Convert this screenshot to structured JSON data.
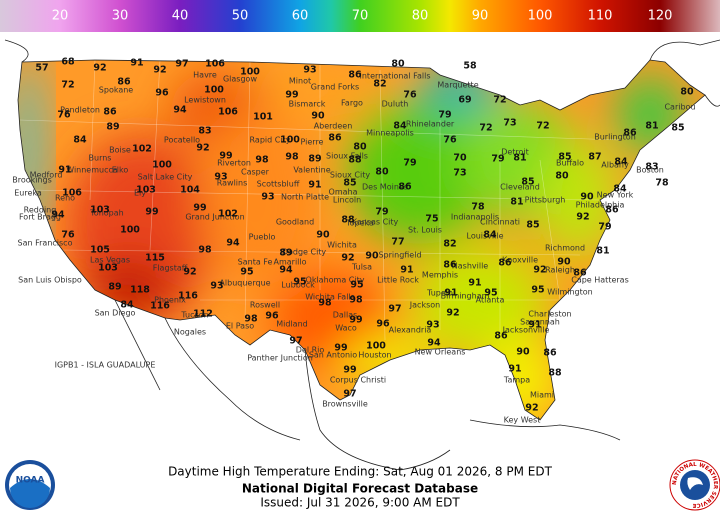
{
  "legend": {
    "ticks": [
      20,
      30,
      40,
      50,
      60,
      70,
      80,
      90,
      100,
      110,
      120
    ]
  },
  "map": {
    "temperatures": [
      92,
      91,
      92,
      97,
      106,
      100,
      93,
      86,
      80,
      58,
      68,
      57,
      72,
      86,
      96,
      100,
      99,
      82,
      76,
      69,
      72,
      80,
      76,
      86,
      94,
      106,
      101,
      90,
      84,
      79,
      72,
      73,
      72,
      86,
      81,
      85,
      84,
      89,
      83,
      100,
      86,
      88,
      80,
      79,
      76,
      70,
      79,
      81,
      85,
      87,
      84,
      83,
      91,
      102,
      100,
      92,
      99,
      98,
      98,
      89,
      80,
      73,
      80,
      106,
      103,
      104,
      93,
      91,
      85,
      86,
      78,
      85,
      84,
      78,
      94,
      103,
      99,
      99,
      102,
      93,
      88,
      79,
      75,
      81,
      90,
      92,
      86,
      76,
      100,
      94,
      90,
      77,
      82,
      84,
      85,
      79,
      105,
      115,
      98,
      89,
      92,
      90,
      86,
      86,
      90,
      81,
      103,
      92,
      95,
      94,
      95,
      91,
      91,
      92,
      86,
      89,
      118,
      116,
      93,
      95,
      91,
      95,
      95,
      84,
      116,
      112,
      96,
      98,
      98,
      97,
      92,
      91,
      98,
      97,
      99,
      96,
      93,
      94,
      86,
      90,
      86,
      99,
      100,
      91,
      88,
      99,
      92,
      97
    ],
    "cities": [
      "Spokane",
      "Havre",
      "Glasgow",
      "Minot",
      "Grand Forks",
      "International Falls",
      "Marquette",
      "Lewistown",
      "Bismarck",
      "Fargo",
      "Duluth",
      "Pendleton",
      "Aberdeen",
      "Minneapolis",
      "Rhinelander",
      "Pierre",
      "Rapid City",
      "Sioux Falls",
      "Boise",
      "Burns",
      "Pocatello",
      "Riverton",
      "Casper",
      "Rawlins",
      "Scottsbluff",
      "North Platte",
      "Valentine",
      "Sioux City",
      "Des Moines",
      "Omaha",
      "Lincoln",
      "Detroit",
      "Buffalo",
      "Burlington",
      "Caribou",
      "Albany",
      "Boston",
      "New York",
      "Philadelphia",
      "Pittsburgh",
      "Cleveland",
      "Indianapolis",
      "Cincinnati",
      "Louisville",
      "Richmond",
      "Raleigh",
      "Cape Hatteras",
      "Wilmington",
      "Charleston",
      "Savannah",
      "Jacksonville",
      "Tampa",
      "Miami",
      "Key West",
      "Elko",
      "Winnemucca",
      "Reno",
      "Medford",
      "Brookings",
      "Eureka",
      "Redding",
      "Fort Bragg",
      "San Francisco",
      "Tonopah",
      "Ely",
      "Salt Lake City",
      "Grand Junction",
      "Pueblo",
      "Goodland",
      "Dodge City",
      "Wichita",
      "Topeka",
      "Kansas City",
      "St. Louis",
      "Springfield",
      "Tulsa",
      "Oklahoma City",
      "Amarillo",
      "Lubbock",
      "Wichita Falls",
      "Little Rock",
      "Memphis",
      "Nashville",
      "Knoxville",
      "Atlanta",
      "Birmingham",
      "Tupelo",
      "Jackson",
      "Dallas",
      "Waco",
      "San Antonio",
      "Houston",
      "Corpus Christi",
      "Brownsville",
      "Midland",
      "El Paso",
      "Roswell",
      "Albuquerque",
      "Santa Fe",
      "Flagstaff",
      "Phoenix",
      "Tucson",
      "Nogales",
      "Las Vegas",
      "San Luis Obispo",
      "San Diego",
      "New Orleans",
      "Alexandria",
      "Panther Junction",
      "Del Rio"
    ],
    "offshore_label": "IGPB1 - ISLA GUADALUPE"
  },
  "footer": {
    "title": "Daytime High Temperature Ending: Sat, Aug 01 2026, 8 PM EDT",
    "database": "National Digital Forecast Database",
    "issued": "Issued: Jul 31 2026, 9:00 AM EDT"
  },
  "logos": {
    "left": "NOAA",
    "right": "NATIONAL WEATHER SERVICE"
  }
}
